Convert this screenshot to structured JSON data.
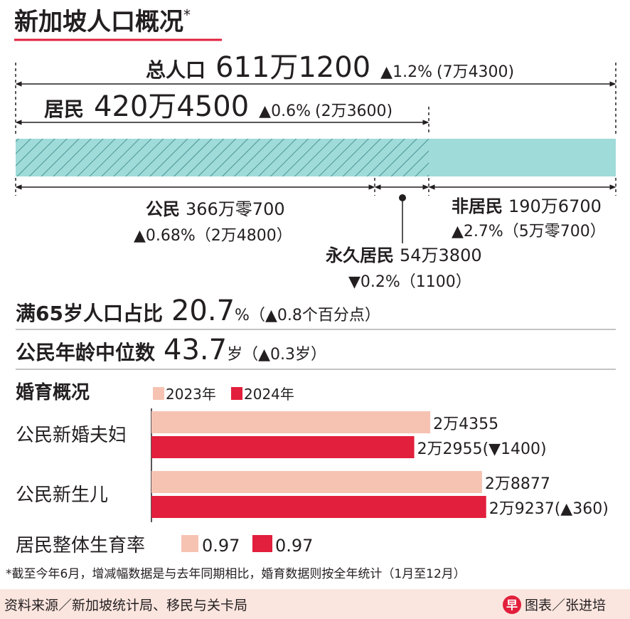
{
  "header": {
    "title": "新加坡人口概况",
    "mark": "*"
  },
  "population": {
    "total": {
      "label": "总人口",
      "value": "611万1200",
      "change": "▲1.2%",
      "change_abs": "(7万4300)"
    },
    "residents": {
      "label": "居民",
      "value": "420万4500",
      "change": "▲0.6%",
      "change_abs": "(2万3600)"
    },
    "citizens": {
      "label": "公民",
      "value": "366万零700",
      "change": "▲0.68%（2万4800）"
    },
    "permanent_residents": {
      "label": "永久居民",
      "value": "54万3800",
      "change": "▼0.2%（1100）"
    },
    "non_residents": {
      "label": "非居民",
      "value": "190万6700",
      "change": "▲2.7%（5万零700）"
    }
  },
  "stats": [
    {
      "label": "满65岁人口占比",
      "value": "20.7",
      "unit": "%",
      "change": "（▲0.8个百分点）"
    },
    {
      "label": "公民年龄中位数",
      "value": "43.7",
      "unit": "岁",
      "change": "（▲0.3岁）"
    }
  ],
  "chart_data": {
    "type": "bar",
    "title": "婚育概况",
    "orientation": "horizontal",
    "categories": [
      "公民新婚夫妇",
      "公民新生儿"
    ],
    "series": [
      {
        "name": "2023年",
        "color": "#f6c3b3",
        "values": [
          24355,
          28877
        ],
        "value_labels": [
          "2万4355",
          "2万8877"
        ]
      },
      {
        "name": "2024年",
        "color": "#e21f3c",
        "values": [
          22955,
          29237
        ],
        "value_labels": [
          "2万2955",
          "2万9237"
        ],
        "change_labels": [
          "(▼1400)",
          "(▲360)"
        ]
      }
    ]
  },
  "fertility": {
    "label": "居民整体生育率",
    "values": [
      "0.97",
      "0.97"
    ]
  },
  "footnote": "*截至今年6月，增减幅数据是与去年同期相比，婚育数据则按全年统计（1月至12月）",
  "footer": {
    "source": "资料来源／新加坡统计局、移民与关卡局",
    "logo": "早",
    "credit": "图表／张进培"
  }
}
